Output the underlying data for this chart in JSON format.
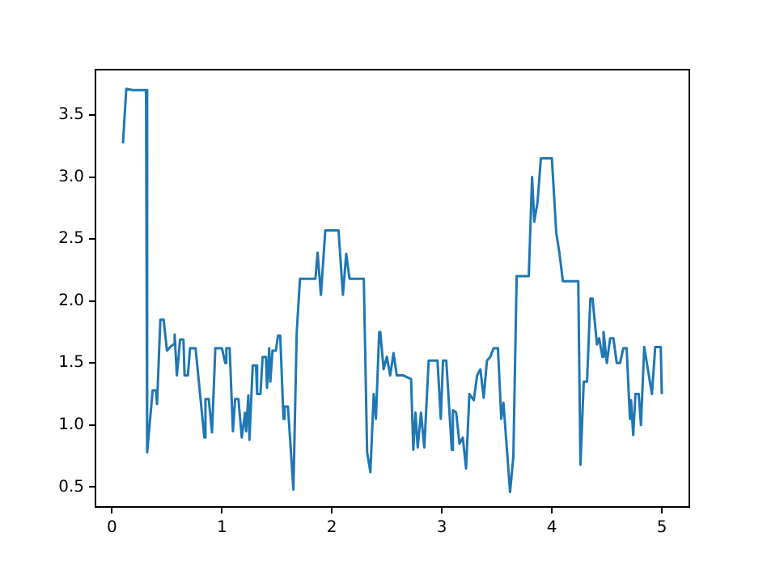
{
  "chart_data": {
    "type": "line",
    "xlim": [
      -0.15,
      5.25
    ],
    "ylim": [
      0.34,
      3.865
    ],
    "xticks": [
      0,
      1,
      2,
      3,
      4,
      5
    ],
    "yticks": [
      0.5,
      {
        "value": 1,
        "label": "1.0"
      },
      1.5,
      {
        "value": 2,
        "label": "2.0"
      },
      2.5,
      {
        "value": 3,
        "label": "3.0"
      },
      3.5
    ],
    "grid": false,
    "legend": false,
    "marker": "none",
    "line_style": "solid",
    "series": [
      {
        "color": "#1f77b4",
        "x": [
          0.1,
          0.13,
          0.19,
          0.29,
          0.31,
          0.32,
          0.37,
          0.4,
          0.41,
          0.44,
          0.47,
          0.5,
          0.53,
          0.56,
          0.57,
          0.59,
          0.62,
          0.65,
          0.66,
          0.69,
          0.71,
          0.76,
          0.79,
          0.84,
          0.85,
          0.88,
          0.91,
          0.94,
          1.0,
          1.03,
          1.04,
          1.07,
          1.1,
          1.12,
          1.15,
          1.18,
          1.21,
          1.22,
          1.24,
          1.25,
          1.28,
          1.31,
          1.32,
          1.35,
          1.37,
          1.4,
          1.41,
          1.43,
          1.44,
          1.46,
          1.49,
          1.51,
          1.53,
          1.56,
          1.57,
          1.6,
          1.65,
          1.68,
          1.71,
          1.85,
          1.87,
          1.9,
          1.94,
          2.06,
          2.1,
          2.13,
          2.16,
          2.29,
          2.32,
          2.35,
          2.38,
          2.4,
          2.43,
          2.44,
          2.47,
          2.5,
          2.53,
          2.56,
          2.59,
          2.65,
          2.72,
          2.74,
          2.76,
          2.78,
          2.81,
          2.84,
          2.88,
          2.96,
          2.99,
          3.01,
          3.04,
          3.09,
          3.1,
          3.13,
          3.16,
          3.19,
          3.22,
          3.25,
          3.29,
          3.32,
          3.35,
          3.38,
          3.41,
          3.44,
          3.47,
          3.51,
          3.54,
          3.56,
          3.57,
          3.62,
          3.65,
          3.68,
          3.79,
          3.82,
          3.84,
          3.87,
          3.9,
          4.0,
          4.04,
          4.07,
          4.1,
          4.24,
          4.26,
          4.29,
          4.32,
          4.35,
          4.37,
          4.41,
          4.43,
          4.46,
          4.47,
          4.5,
          4.53,
          4.56,
          4.59,
          4.62,
          4.65,
          4.68,
          4.71,
          4.72,
          4.74,
          4.76,
          4.79,
          4.81,
          4.84,
          4.91,
          4.94,
          4.99,
          5.0
        ],
        "values": [
          3.27,
          3.71,
          3.7,
          3.7,
          3.7,
          0.78,
          1.28,
          1.28,
          1.17,
          1.85,
          1.85,
          1.6,
          1.63,
          1.65,
          1.73,
          1.4,
          1.69,
          1.69,
          1.4,
          1.4,
          1.62,
          1.62,
          1.35,
          0.9,
          1.21,
          1.21,
          0.94,
          1.62,
          1.62,
          1.5,
          1.62,
          1.62,
          0.95,
          1.21,
          1.21,
          0.9,
          1.1,
          0.95,
          1.24,
          0.88,
          1.48,
          1.48,
          1.25,
          1.25,
          1.55,
          1.55,
          1.3,
          1.62,
          1.35,
          1.6,
          1.6,
          1.72,
          1.72,
          1.05,
          1.15,
          1.15,
          0.48,
          1.75,
          2.18,
          2.18,
          2.39,
          2.05,
          2.57,
          2.57,
          2.05,
          2.38,
          2.18,
          2.18,
          0.78,
          0.62,
          1.25,
          1.05,
          1.75,
          1.75,
          1.45,
          1.55,
          1.4,
          1.58,
          1.4,
          1.4,
          1.37,
          0.8,
          1.1,
          0.82,
          1.1,
          0.82,
          1.52,
          1.52,
          1.05,
          1.52,
          1.52,
          0.8,
          1.12,
          1.1,
          0.85,
          0.9,
          0.65,
          1.25,
          1.2,
          1.4,
          1.45,
          1.22,
          1.52,
          1.55,
          1.62,
          1.62,
          1.05,
          1.18,
          1.18,
          0.46,
          0.75,
          2.2,
          2.2,
          3.0,
          2.64,
          2.8,
          3.15,
          3.15,
          2.55,
          2.38,
          2.16,
          2.16,
          0.68,
          1.35,
          1.35,
          2.02,
          2.02,
          1.65,
          1.7,
          1.55,
          1.75,
          1.5,
          1.7,
          1.7,
          1.5,
          1.5,
          1.62,
          1.62,
          1.05,
          1.2,
          0.92,
          1.25,
          1.25,
          1.0,
          1.63,
          1.25,
          1.63,
          1.63,
          1.25
        ]
      }
    ]
  }
}
